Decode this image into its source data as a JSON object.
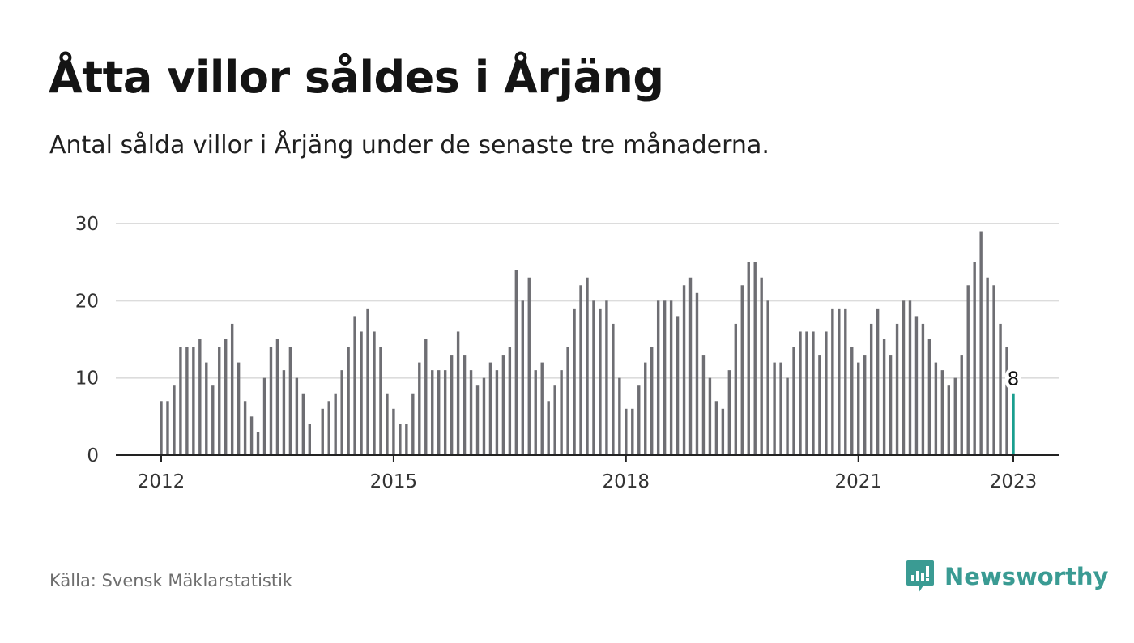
{
  "title": "Åtta villor såldes i Årjäng",
  "subtitle": "Antal sålda villor i Årjäng under de senaste tre månaderna.",
  "source": "Källa: Svensk Mäklarstatistik",
  "brand": {
    "name": "Newsworthy",
    "icon": "newsworthy-logo-icon",
    "color": "#3a9b93"
  },
  "colors": {
    "bar": "#6e6e73",
    "highlight": "#1a9e8f",
    "grid": "#dcdcdc",
    "axis": "#222222",
    "text": "#333333"
  },
  "chart_data": {
    "type": "bar",
    "x_ticks": [
      "2012",
      "2015",
      "2018",
      "2021",
      "2023"
    ],
    "x_tick_months": [
      0,
      36,
      72,
      108,
      132
    ],
    "y_ticks": [
      "0",
      "10",
      "20",
      "30"
    ],
    "ylim": [
      0,
      30
    ],
    "grid": true,
    "start_month": "2012-01",
    "end_month": "2023-01",
    "values": [
      7,
      7,
      9,
      14,
      14,
      14,
      15,
      12,
      9,
      14,
      15,
      17,
      12,
      7,
      5,
      3,
      10,
      14,
      15,
      11,
      14,
      10,
      8,
      4,
      null,
      6,
      7,
      8,
      11,
      14,
      18,
      16,
      19,
      16,
      14,
      8,
      6,
      4,
      4,
      8,
      12,
      15,
      11,
      11,
      11,
      13,
      16,
      13,
      11,
      9,
      10,
      12,
      11,
      13,
      14,
      24,
      20,
      23,
      11,
      12,
      7,
      9,
      11,
      14,
      19,
      22,
      23,
      20,
      19,
      20,
      17,
      10,
      6,
      6,
      9,
      12,
      14,
      20,
      20,
      20,
      18,
      22,
      23,
      21,
      13,
      10,
      7,
      6,
      11,
      17,
      22,
      25,
      25,
      23,
      20,
      12,
      12,
      10,
      14,
      16,
      16,
      16,
      13,
      16,
      19,
      19,
      19,
      14,
      12,
      13,
      17,
      19,
      15,
      13,
      17,
      20,
      20,
      18,
      17,
      15,
      12,
      11,
      9,
      10,
      13,
      22,
      25,
      29,
      23,
      22,
      17,
      14,
      8
    ],
    "highlight_label": "8"
  }
}
